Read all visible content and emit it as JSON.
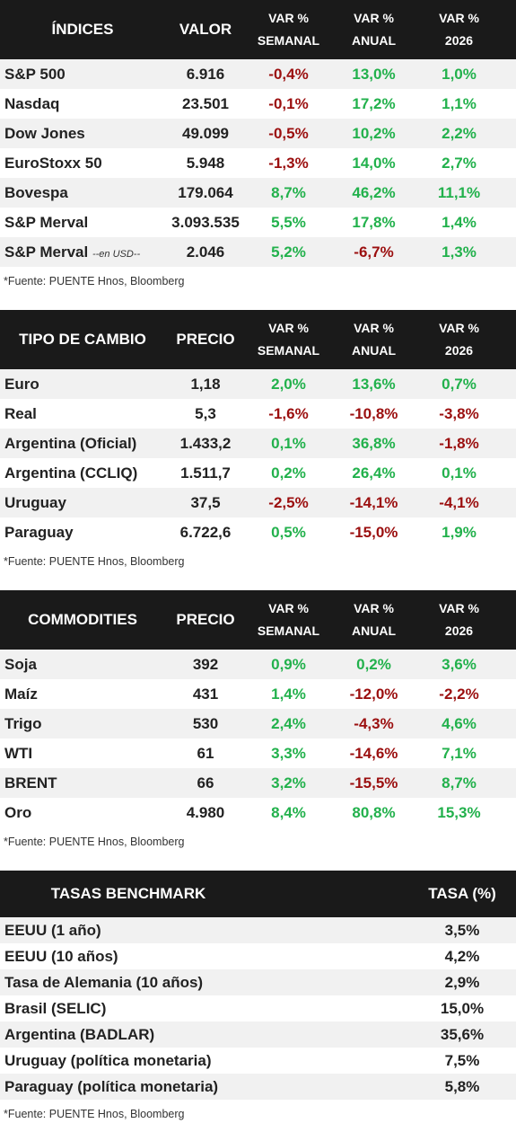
{
  "indices": {
    "headers": {
      "name": "ÍNDICES",
      "value": "VALOR",
      "weekly": [
        "VAR %",
        "SEMANAL"
      ],
      "annual": [
        "VAR %",
        "ANUAL"
      ],
      "ytd": [
        "VAR %",
        "2026"
      ]
    },
    "rows": [
      {
        "name": "S&P 500",
        "value": "6.916",
        "weekly": "-0,4%",
        "annual": "13,0%",
        "ytd": "1,0%"
      },
      {
        "name": "Nasdaq",
        "value": "23.501",
        "weekly": "-0,1%",
        "annual": "17,2%",
        "ytd": "1,1%"
      },
      {
        "name": "Dow Jones",
        "value": "49.099",
        "weekly": "-0,5%",
        "annual": "10,2%",
        "ytd": "2,2%"
      },
      {
        "name": "EuroStoxx 50",
        "value": "5.948",
        "weekly": "-1,3%",
        "annual": "14,0%",
        "ytd": "2,7%"
      },
      {
        "name": "Bovespa",
        "value": "179.064",
        "weekly": "8,7%",
        "annual": "46,2%",
        "ytd": "11,1%"
      },
      {
        "name": "S&P Merval",
        "value": "3.093.535",
        "weekly": "5,5%",
        "annual": "17,8%",
        "ytd": "1,4%"
      },
      {
        "name": "S&P Merval",
        "note": "--en USD--",
        "value": "2.046",
        "weekly": "5,2%",
        "annual": "-6,7%",
        "ytd": "1,3%"
      }
    ],
    "source": "*Fuente: PUENTE Hnos, Bloomberg"
  },
  "fx": {
    "headers": {
      "name": "TIPO DE CAMBIO",
      "value": "PRECIO",
      "weekly": [
        "VAR %",
        "SEMANAL"
      ],
      "annual": [
        "VAR %",
        "ANUAL"
      ],
      "ytd": [
        "VAR %",
        "2026"
      ]
    },
    "rows": [
      {
        "name": "Euro",
        "value": "1,18",
        "weekly": "2,0%",
        "annual": "13,6%",
        "ytd": "0,7%"
      },
      {
        "name": "Real",
        "value": "5,3",
        "weekly": "-1,6%",
        "annual": "-10,8%",
        "ytd": "-3,8%"
      },
      {
        "name": "Argentina (Oficial)",
        "value": "1.433,2",
        "weekly": "0,1%",
        "annual": "36,8%",
        "ytd": "-1,8%"
      },
      {
        "name": "Argentina (CCLIQ)",
        "value": "1.511,7",
        "weekly": "0,2%",
        "annual": "26,4%",
        "ytd": "0,1%"
      },
      {
        "name": "Uruguay",
        "value": "37,5",
        "weekly": "-2,5%",
        "annual": "-14,1%",
        "ytd": "-4,1%"
      },
      {
        "name": "Paraguay",
        "value": "6.722,6",
        "weekly": "0,5%",
        "annual": "-15,0%",
        "ytd": "1,9%"
      }
    ],
    "source": "*Fuente: PUENTE Hnos, Bloomberg"
  },
  "commodities": {
    "headers": {
      "name": "COMMODITIES",
      "value": "PRECIO",
      "weekly": [
        "VAR %",
        "SEMANAL"
      ],
      "annual": [
        "VAR %",
        "ANUAL"
      ],
      "ytd": [
        "VAR %",
        "2026"
      ]
    },
    "rows": [
      {
        "name": "Soja",
        "value": "392",
        "weekly": "0,9%",
        "annual": "0,2%",
        "ytd": "3,6%"
      },
      {
        "name": "Maíz",
        "value": "431",
        "weekly": "1,4%",
        "annual": "-12,0%",
        "ytd": "-2,2%"
      },
      {
        "name": "Trigo",
        "value": "530",
        "weekly": "2,4%",
        "annual": "-4,3%",
        "ytd": "4,6%"
      },
      {
        "name": "WTI",
        "value": "61",
        "weekly": "3,3%",
        "annual": "-14,6%",
        "ytd": "7,1%"
      },
      {
        "name": "BRENT",
        "value": "66",
        "weekly": "3,2%",
        "annual": "-15,5%",
        "ytd": "8,7%"
      },
      {
        "name": "Oro",
        "value": "4.980",
        "weekly": "8,4%",
        "annual": "80,8%",
        "ytd": "15,3%"
      }
    ],
    "source": "*Fuente: PUENTE Hnos, Bloomberg"
  },
  "rates": {
    "headers": {
      "name": "TASAS BENCHMARK",
      "value": "TASA (%)"
    },
    "rows": [
      {
        "name": "EEUU (1 año)",
        "value": "3,5%"
      },
      {
        "name": "EEUU (10 años)",
        "value": "4,2%"
      },
      {
        "name": "Tasa de Alemania (10 años)",
        "value": "2,9%"
      },
      {
        "name": "Brasil (SELIC)",
        "value": "15,0%"
      },
      {
        "name": "Argentina (BADLAR)",
        "value": "35,6%"
      },
      {
        "name": "Uruguay (política monetaria)",
        "value": "7,5%"
      },
      {
        "name": "Paraguay (política monetaria)",
        "value": "5,8%"
      }
    ],
    "source": "*Fuente: PUENTE Hnos, Bloomberg"
  },
  "colors": {
    "header_bg": "#1a1a1a",
    "positive": "#22b14c",
    "negative": "#9b0f0f",
    "row_alt": "#f1f1f1"
  }
}
